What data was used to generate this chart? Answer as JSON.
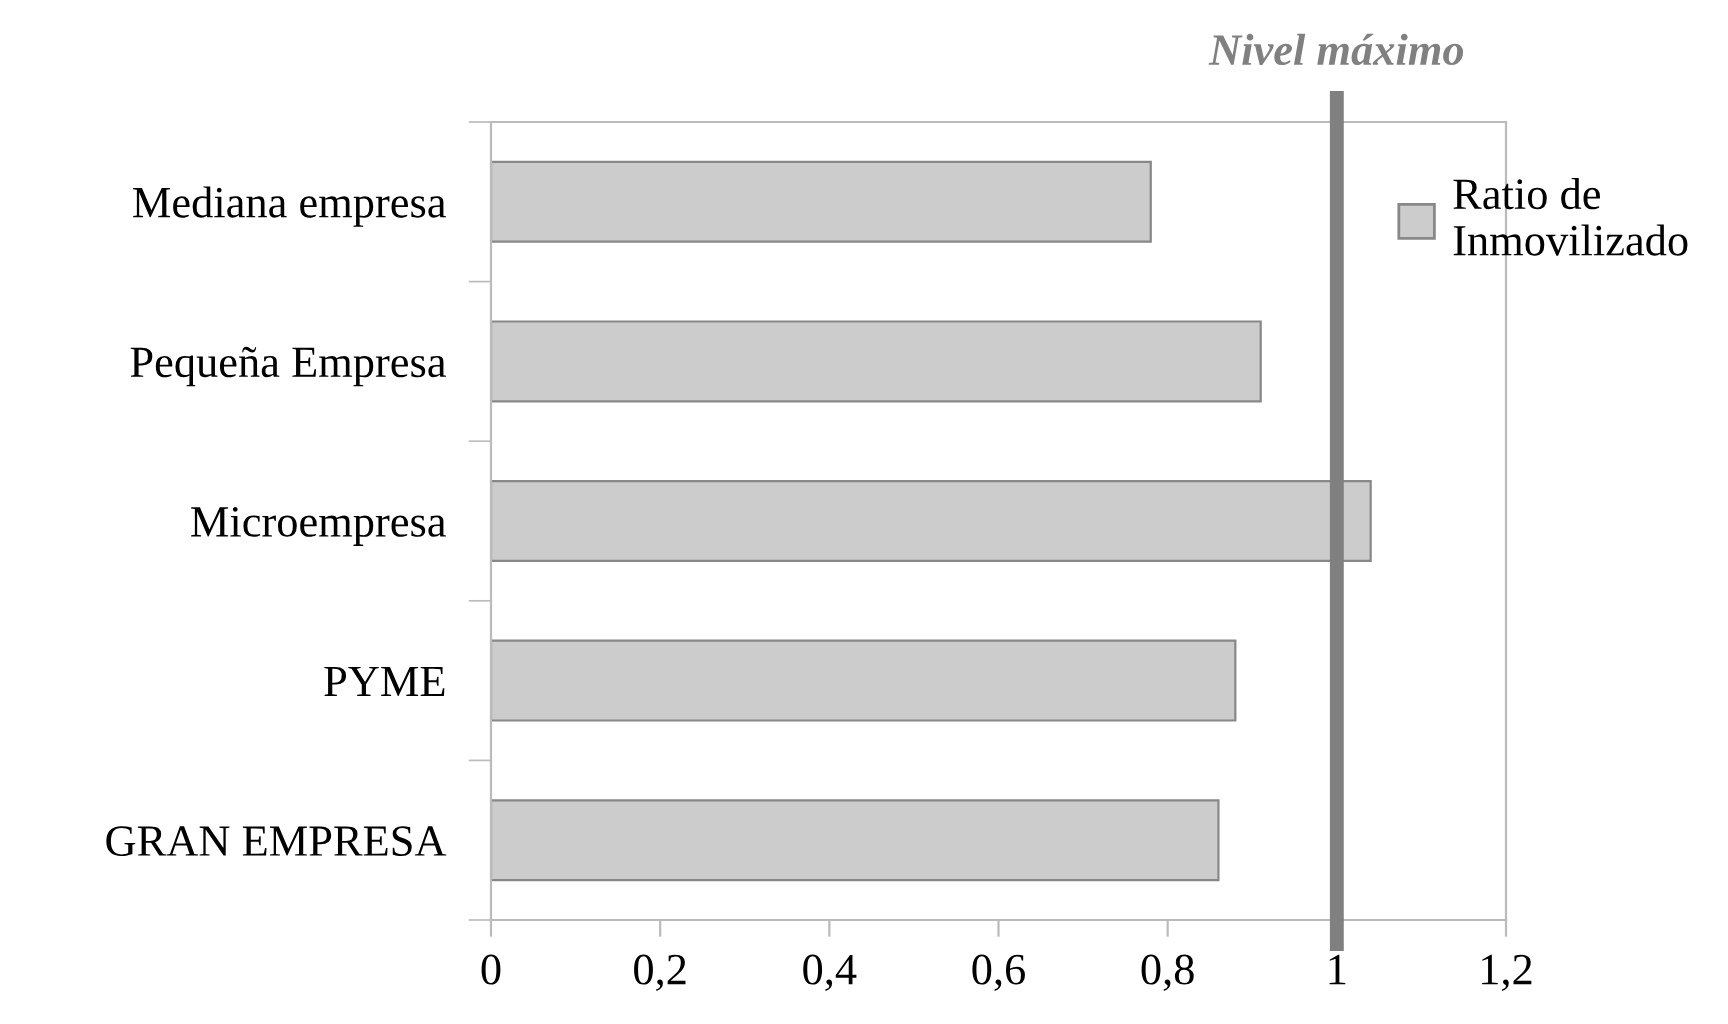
{
  "chart_data": {
    "type": "bar",
    "orientation": "horizontal",
    "categories": [
      "Mediana empresa",
      "Pequeña Empresa",
      "Microempresa",
      "PYME",
      "GRAN EMPRESA"
    ],
    "series": [
      {
        "name": "Ratio de\nInmovilizado",
        "color": "#cccccc",
        "values": [
          0.78,
          0.91,
          1.04,
          0.88,
          0.86
        ]
      }
    ],
    "xlim": [
      0,
      1.2
    ],
    "xticks": [
      {
        "value": 0,
        "label": "0"
      },
      {
        "value": 0.2,
        "label": "0,2"
      },
      {
        "value": 0.4,
        "label": "0,4"
      },
      {
        "value": 0.6,
        "label": "0,6"
      },
      {
        "value": 0.8,
        "label": "0,8"
      },
      {
        "value": 1,
        "label": "1"
      },
      {
        "value": 1.2,
        "label": "1,2"
      }
    ],
    "ref_lines": [
      {
        "axis": "x",
        "value": 1,
        "label": "Nivel máximo",
        "color": "#808080"
      }
    ],
    "grid": false,
    "legend": "top right"
  }
}
